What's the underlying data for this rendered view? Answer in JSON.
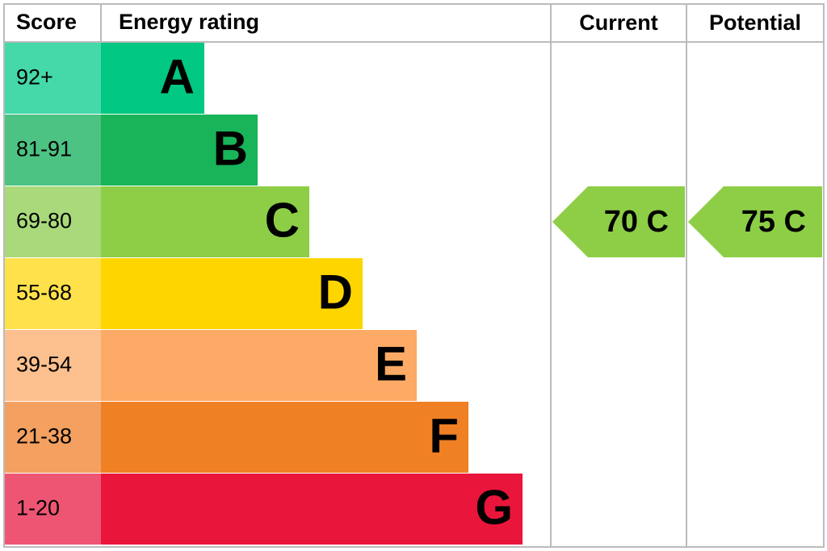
{
  "header": {
    "score": "Score",
    "energy_rating": "Energy rating",
    "current": "Current",
    "potential": "Potential"
  },
  "bands": [
    {
      "score": "92+",
      "letter": "A",
      "color": "#00c781",
      "score_color": "#45d8a8"
    },
    {
      "score": "81-91",
      "letter": "B",
      "color": "#19b459",
      "score_color": "#4cc283"
    },
    {
      "score": "69-80",
      "letter": "C",
      "color": "#8dce46",
      "score_color": "#a9d97a"
    },
    {
      "score": "55-68",
      "letter": "D",
      "color": "#ffd500",
      "score_color": "#ffe14b"
    },
    {
      "score": "39-54",
      "letter": "E",
      "color": "#fcaa65",
      "score_color": "#fcc08f"
    },
    {
      "score": "21-38",
      "letter": "F",
      "color": "#ef8023",
      "score_color": "#f3a060"
    },
    {
      "score": "1-20",
      "letter": "G",
      "color": "#e9153b",
      "score_color": "#ee5573"
    }
  ],
  "current": {
    "label": "70 C",
    "color": "#8dce46"
  },
  "potential": {
    "label": "75 C",
    "color": "#8dce46"
  }
}
